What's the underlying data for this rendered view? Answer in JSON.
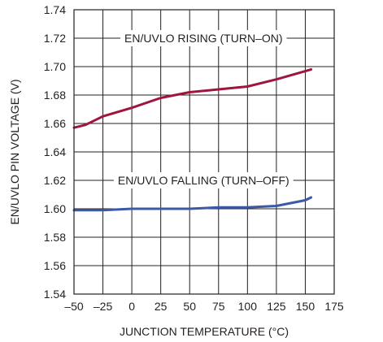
{
  "chart_data": {
    "type": "line",
    "title": "",
    "xlabel": "JUNCTION TEMPERATURE (°C)",
    "ylabel": "EN/UVLO PIN VOLTAGE (V)",
    "xlim": [
      -50,
      175
    ],
    "ylim": [
      1.54,
      1.74
    ],
    "x_ticks": [
      -50,
      -25,
      0,
      25,
      50,
      75,
      100,
      125,
      150,
      175
    ],
    "x_tick_labels": [
      "–50",
      "–25",
      "0",
      "25",
      "50",
      "75",
      "100",
      "125",
      "150",
      "175"
    ],
    "y_ticks": [
      1.54,
      1.56,
      1.58,
      1.6,
      1.62,
      1.64,
      1.66,
      1.68,
      1.7,
      1.72,
      1.74
    ],
    "y_tick_labels": [
      "1.54",
      "1.56",
      "1.58",
      "1.60",
      "1.62",
      "1.64",
      "1.66",
      "1.68",
      "1.70",
      "1.72",
      "1.74"
    ],
    "grid": true,
    "series": [
      {
        "name": "EN/UVLO RISING (TURN–ON)",
        "color": "#a0153e",
        "x": [
          -50,
          -40,
          -25,
          0,
          25,
          50,
          75,
          100,
          125,
          155
        ],
        "y": [
          1.657,
          1.659,
          1.665,
          1.671,
          1.678,
          1.682,
          1.684,
          1.686,
          1.691,
          1.698
        ]
      },
      {
        "name": "EN/UVLO FALLING (TURN–OFF)",
        "color": "#3a5aa8",
        "x": [
          -50,
          -25,
          0,
          25,
          50,
          75,
          100,
          125,
          150,
          155
        ],
        "y": [
          1.599,
          1.599,
          1.6,
          1.6,
          1.6,
          1.601,
          1.601,
          1.602,
          1.606,
          1.608
        ]
      }
    ],
    "annotations": [
      {
        "text": "EN/UVLO RISING (TURN–ON)",
        "x": 62,
        "y": 1.72
      },
      {
        "text": "EN/UVLO FALLING (TURN–OFF)",
        "x": 62,
        "y": 1.62
      }
    ]
  }
}
